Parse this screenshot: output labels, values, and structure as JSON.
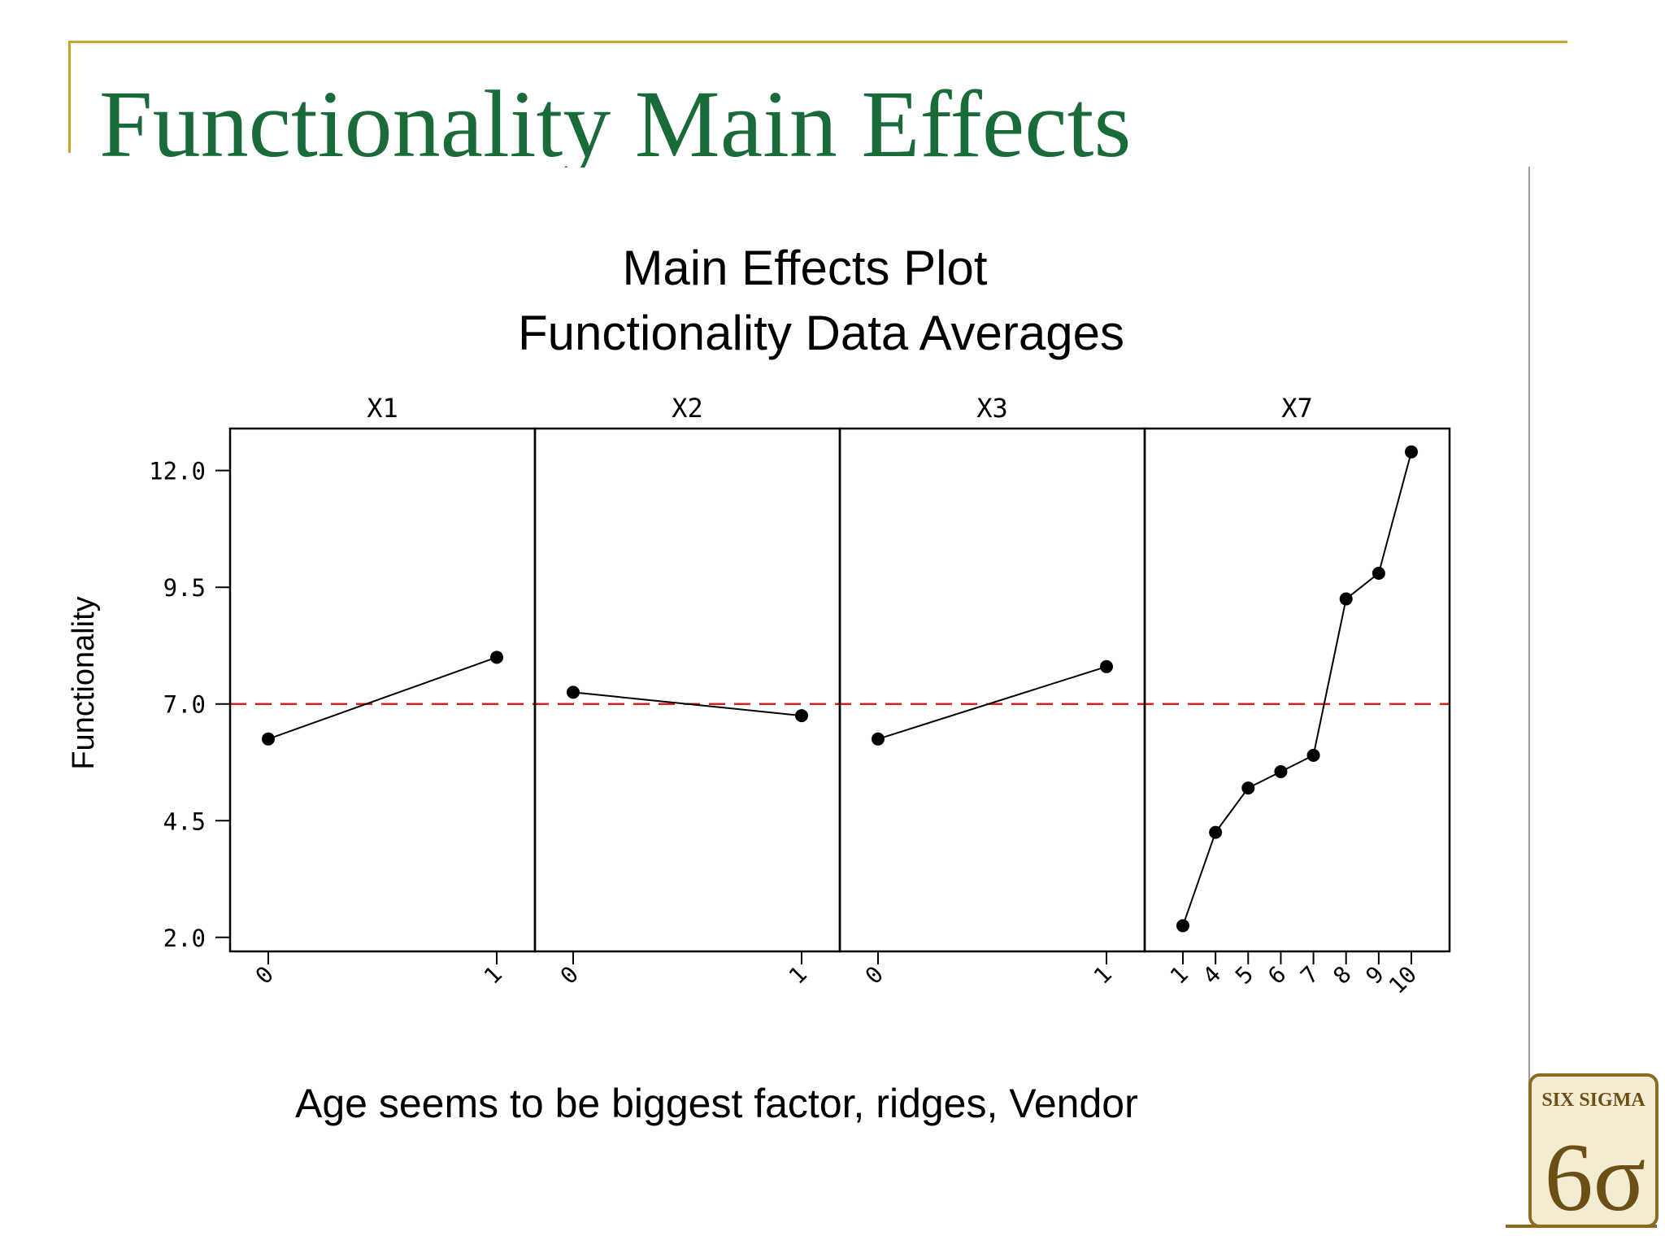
{
  "slide": {
    "title": "Functionality Main Effects",
    "caption": "Age seems to be biggest factor, ridges, Vendor",
    "logo_text": "SIX SIGMA",
    "logo_mark": "6σ"
  },
  "colors": {
    "title_green": "#1a6b3a",
    "accent_gold": "#c9a227",
    "reference_line": "#d42020",
    "series": "#000000"
  },
  "chart_data": {
    "type": "line",
    "title": "Main Effects Plot",
    "subtitle": "Functionality Data Averages",
    "ylabel": "Functionality",
    "ylim": [
      1.7,
      12.9
    ],
    "yticks": [
      2.0,
      4.5,
      7.0,
      9.5,
      12.0
    ],
    "ytick_labels": [
      "2.0",
      "4.5",
      "7.0",
      "9.5",
      "12.0"
    ],
    "reference_line": 7.0,
    "grid": false,
    "panels": [
      {
        "name": "X1",
        "categories": [
          "0",
          "1"
        ],
        "values": [
          6.25,
          8.0
        ]
      },
      {
        "name": "X2",
        "categories": [
          "0",
          "1"
        ],
        "values": [
          7.25,
          6.75
        ]
      },
      {
        "name": "X3",
        "categories": [
          "0",
          "1"
        ],
        "values": [
          6.25,
          7.8
        ]
      },
      {
        "name": "X7",
        "categories": [
          "1",
          "4",
          "5",
          "6",
          "7",
          "8",
          "9",
          "10"
        ],
        "values": [
          2.25,
          4.25,
          5.2,
          5.55,
          5.9,
          9.25,
          9.8,
          12.4
        ]
      }
    ]
  }
}
